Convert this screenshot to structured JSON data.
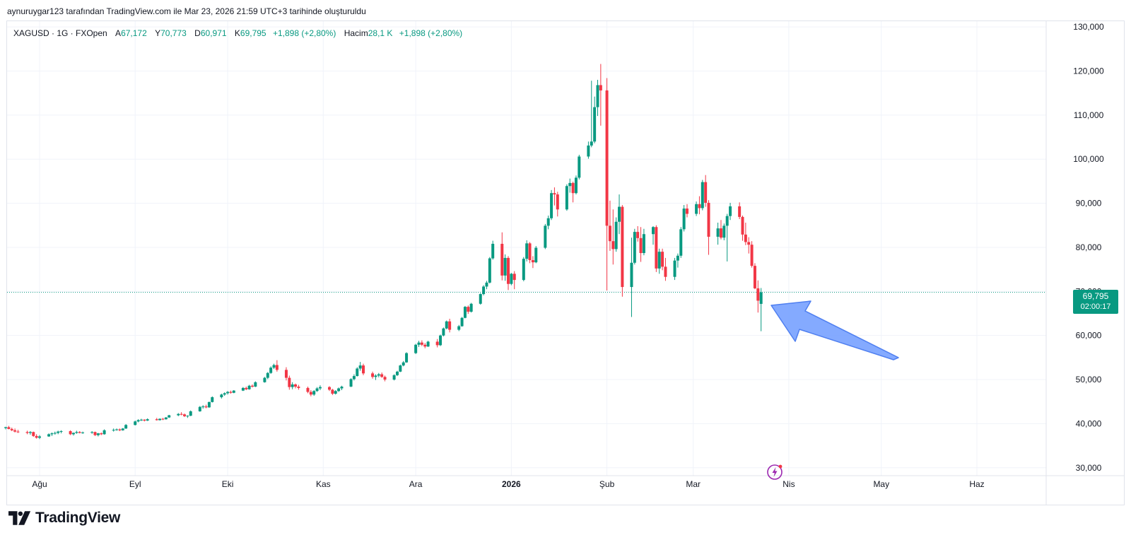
{
  "credit": "aynuruygar123 tarafından TradingView.com ile Mar 23, 2026 21:59 UTC+3 tarihinde oluşturuldu",
  "legend": {
    "symbol": "XAGUSD · 1G · FXOpen",
    "open_label": "A",
    "open": "67,172",
    "high_label": "Y",
    "high": "70,773",
    "low_label": "D",
    "low": "60,971",
    "close_label": "K",
    "close": "69,795",
    "change": "+1,898 (+2,80%)",
    "volume_label": "Hacim",
    "volume": "28,1 K",
    "volume_change": "+1,898 (+2,80%)"
  },
  "price_tag": {
    "price": "69,795",
    "countdown": "02:00:17"
  },
  "brand": {
    "name": "TradingView"
  },
  "icons": {
    "bolt": "lightning-bolt-icon",
    "logo": "tradingview-logo-icon"
  },
  "colors": {
    "up": "#089981",
    "down": "#f23645",
    "arrow": "#6f9bff",
    "grid": "#f0f3fa"
  },
  "chart_data": {
    "type": "candlestick",
    "symbol": "XAGUSD",
    "interval": "1G",
    "y_axis_ticks": [
      "30,000",
      "40,000",
      "50,000",
      "60,000",
      "70,000",
      "80,000",
      "90,000",
      "100,000",
      "110,000",
      "120,000",
      "130,000"
    ],
    "y_range": [
      28.2,
      131.3
    ],
    "x_axis_ticks": [
      {
        "label": "Ağu",
        "date": "2025-08-01"
      },
      {
        "label": "Eyl",
        "date": "2025-09-01"
      },
      {
        "label": "Eki",
        "date": "2025-10-01"
      },
      {
        "label": "Kas",
        "date": "2025-11-01"
      },
      {
        "label": "Ara",
        "date": "2025-12-01"
      },
      {
        "label": "2026",
        "date": "2026-01-01",
        "bold": true
      },
      {
        "label": "Şub",
        "date": "2026-02-01"
      },
      {
        "label": "Mar",
        "date": "2026-03-01"
      },
      {
        "label": "Nis",
        "date": "2026-04-01"
      },
      {
        "label": "May",
        "date": "2026-05-01"
      },
      {
        "label": "Haz",
        "date": "2026-06-01"
      }
    ],
    "last_price": 69.795,
    "grid": true,
    "annotation": "blue arrow pointing at last candle",
    "candles": [
      [
        "2025-07-21",
        39.0,
        39.3,
        38.7,
        39.2
      ],
      [
        "2025-07-22",
        39.2,
        39.5,
        38.7,
        38.8
      ],
      [
        "2025-07-23",
        38.8,
        39.1,
        38.3,
        38.5
      ],
      [
        "2025-07-24",
        38.5,
        38.9,
        38.0,
        38.2
      ],
      [
        "2025-07-25",
        38.2,
        38.6,
        37.9,
        38.1
      ],
      [
        "2025-07-28",
        38.1,
        38.4,
        37.6,
        37.9
      ],
      [
        "2025-07-29",
        37.9,
        38.3,
        37.5,
        38.1
      ],
      [
        "2025-07-30",
        38.1,
        38.2,
        37.0,
        37.2
      ],
      [
        "2025-07-31",
        37.2,
        37.6,
        36.6,
        36.8
      ],
      [
        "2025-08-01",
        36.8,
        37.4,
        36.5,
        37.1
      ],
      [
        "2025-08-04",
        37.1,
        37.8,
        37.0,
        37.6
      ],
      [
        "2025-08-05",
        37.6,
        38.0,
        37.2,
        37.8
      ],
      [
        "2025-08-06",
        37.8,
        38.2,
        37.5,
        37.9
      ],
      [
        "2025-08-07",
        37.9,
        38.4,
        37.6,
        38.2
      ],
      [
        "2025-08-08",
        38.2,
        38.5,
        37.8,
        38.3
      ],
      [
        "2025-08-11",
        38.3,
        38.5,
        37.4,
        37.6
      ],
      [
        "2025-08-12",
        37.6,
        38.0,
        37.3,
        37.9
      ],
      [
        "2025-08-13",
        37.9,
        38.4,
        37.7,
        38.1
      ],
      [
        "2025-08-14",
        38.1,
        38.3,
        37.8,
        37.9
      ],
      [
        "2025-08-15",
        37.9,
        38.2,
        37.7,
        38.0
      ],
      [
        "2025-08-18",
        38.0,
        38.3,
        37.7,
        38.1
      ],
      [
        "2025-08-19",
        38.1,
        38.2,
        37.2,
        37.4
      ],
      [
        "2025-08-20",
        37.4,
        37.9,
        37.1,
        37.8
      ],
      [
        "2025-08-21",
        37.8,
        38.0,
        37.4,
        37.6
      ],
      [
        "2025-08-22",
        37.6,
        38.7,
        37.5,
        38.5
      ],
      [
        "2025-08-25",
        38.5,
        38.9,
        38.2,
        38.6
      ],
      [
        "2025-08-26",
        38.6,
        38.9,
        38.4,
        38.7
      ],
      [
        "2025-08-27",
        38.7,
        38.9,
        38.3,
        38.5
      ],
      [
        "2025-08-28",
        38.5,
        39.0,
        38.4,
        38.9
      ],
      [
        "2025-08-29",
        38.9,
        39.9,
        38.8,
        39.7
      ],
      [
        "2025-09-01",
        39.7,
        40.7,
        39.6,
        40.5
      ],
      [
        "2025-09-02",
        40.5,
        41.0,
        40.3,
        40.8
      ],
      [
        "2025-09-03",
        40.8,
        41.1,
        40.6,
        40.9
      ],
      [
        "2025-09-04",
        40.9,
        41.0,
        40.5,
        40.7
      ],
      [
        "2025-09-05",
        40.7,
        41.2,
        40.6,
        41.0
      ],
      [
        "2025-09-08",
        41.0,
        41.3,
        40.7,
        40.8
      ],
      [
        "2025-09-09",
        40.8,
        41.2,
        40.7,
        41.1
      ],
      [
        "2025-09-10",
        41.1,
        41.3,
        40.8,
        41.0
      ],
      [
        "2025-09-11",
        41.0,
        41.5,
        40.9,
        41.4
      ],
      [
        "2025-09-12",
        41.4,
        42.0,
        41.3,
        41.9
      ],
      [
        "2025-09-15",
        41.9,
        42.4,
        41.7,
        42.2
      ],
      [
        "2025-09-16",
        42.2,
        42.6,
        41.9,
        42.1
      ],
      [
        "2025-09-17",
        42.1,
        42.3,
        41.5,
        41.7
      ],
      [
        "2025-09-18",
        41.7,
        41.9,
        41.3,
        41.8
      ],
      [
        "2025-09-19",
        41.8,
        43.0,
        41.7,
        42.8
      ],
      [
        "2025-09-22",
        42.8,
        44.0,
        42.7,
        43.8
      ],
      [
        "2025-09-23",
        43.8,
        44.2,
        43.4,
        43.9
      ],
      [
        "2025-09-24",
        43.9,
        44.3,
        43.5,
        43.7
      ],
      [
        "2025-09-25",
        43.7,
        45.0,
        43.6,
        44.9
      ],
      [
        "2025-09-26",
        44.9,
        46.2,
        44.8,
        46.0
      ],
      [
        "2025-09-29",
        46.0,
        46.8,
        45.7,
        46.6
      ],
      [
        "2025-09-30",
        46.6,
        47.1,
        46.3,
        46.9
      ],
      [
        "2025-10-01",
        46.9,
        47.4,
        46.6,
        47.2
      ],
      [
        "2025-10-02",
        47.2,
        47.5,
        46.8,
        47.0
      ],
      [
        "2025-10-03",
        47.0,
        47.6,
        46.9,
        47.5
      ],
      [
        "2025-10-06",
        47.5,
        48.3,
        47.4,
        48.1
      ],
      [
        "2025-10-07",
        48.1,
        48.4,
        47.6,
        47.8
      ],
      [
        "2025-10-08",
        47.8,
        48.8,
        47.7,
        48.6
      ],
      [
        "2025-10-09",
        48.6,
        48.9,
        48.2,
        48.4
      ],
      [
        "2025-10-10",
        48.4,
        49.6,
        48.3,
        49.4
      ],
      [
        "2025-10-13",
        49.4,
        50.6,
        49.3,
        50.4
      ],
      [
        "2025-10-14",
        50.4,
        51.7,
        50.1,
        51.5
      ],
      [
        "2025-10-15",
        51.5,
        53.0,
        51.3,
        52.7
      ],
      [
        "2025-10-16",
        52.7,
        53.6,
        52.4,
        53.3
      ],
      [
        "2025-10-17",
        53.3,
        54.4,
        51.8,
        52.2
      ],
      [
        "2025-10-20",
        52.2,
        52.8,
        49.8,
        50.4
      ],
      [
        "2025-10-21",
        50.4,
        50.9,
        47.7,
        48.3
      ],
      [
        "2025-10-22",
        48.3,
        49.4,
        47.8,
        48.9
      ],
      [
        "2025-10-23",
        48.9,
        49.1,
        48.0,
        48.4
      ],
      [
        "2025-10-24",
        48.4,
        48.8,
        47.7,
        48.1
      ],
      [
        "2025-10-27",
        48.1,
        48.4,
        46.9,
        47.2
      ],
      [
        "2025-10-28",
        47.2,
        47.6,
        46.2,
        46.6
      ],
      [
        "2025-10-29",
        46.6,
        47.6,
        46.3,
        47.4
      ],
      [
        "2025-10-30",
        47.4,
        48.3,
        47.2,
        48.0
      ],
      [
        "2025-10-31",
        48.0,
        48.7,
        47.6,
        48.3
      ],
      [
        "2025-11-03",
        48.3,
        48.5,
        47.4,
        47.7
      ],
      [
        "2025-11-04",
        47.7,
        47.9,
        46.5,
        46.8
      ],
      [
        "2025-11-05",
        46.8,
        47.6,
        46.6,
        47.4
      ],
      [
        "2025-11-06",
        47.4,
        48.2,
        47.2,
        48.0
      ],
      [
        "2025-11-07",
        48.0,
        48.6,
        47.6,
        48.4
      ],
      [
        "2025-11-10",
        48.4,
        50.3,
        48.3,
        50.1
      ],
      [
        "2025-11-11",
        50.1,
        51.2,
        49.8,
        50.8
      ],
      [
        "2025-11-12",
        50.8,
        52.8,
        50.7,
        52.5
      ],
      [
        "2025-11-13",
        52.5,
        54.0,
        52.0,
        53.2
      ],
      [
        "2025-11-14",
        53.2,
        53.6,
        51.0,
        51.4
      ],
      [
        "2025-11-17",
        51.4,
        51.8,
        50.2,
        50.6
      ],
      [
        "2025-11-18",
        50.6,
        51.2,
        49.9,
        50.9
      ],
      [
        "2025-11-19",
        50.9,
        51.5,
        50.5,
        51.2
      ],
      [
        "2025-11-20",
        51.2,
        51.6,
        50.4,
        50.6
      ],
      [
        "2025-11-21",
        50.6,
        50.9,
        49.6,
        50.0
      ],
      [
        "2025-11-24",
        50.0,
        51.2,
        49.8,
        51.0
      ],
      [
        "2025-11-25",
        51.0,
        52.0,
        50.8,
        51.8
      ],
      [
        "2025-11-26",
        51.8,
        53.4,
        51.7,
        53.2
      ],
      [
        "2025-11-27",
        53.2,
        54.2,
        53.0,
        53.9
      ],
      [
        "2025-11-28",
        53.9,
        56.2,
        53.8,
        56.0
      ],
      [
        "2025-12-01",
        56.0,
        58.1,
        55.8,
        57.9
      ],
      [
        "2025-12-02",
        57.9,
        58.8,
        57.4,
        58.4
      ],
      [
        "2025-12-03",
        58.4,
        58.9,
        57.6,
        57.9
      ],
      [
        "2025-12-04",
        57.9,
        58.3,
        57.1,
        57.5
      ],
      [
        "2025-12-05",
        57.5,
        58.8,
        57.4,
        58.6
      ],
      [
        "2025-12-08",
        58.6,
        59.2,
        57.3,
        57.8
      ],
      [
        "2025-12-09",
        57.8,
        60.2,
        57.6,
        60.0
      ],
      [
        "2025-12-10",
        60.0,
        61.8,
        59.8,
        61.6
      ],
      [
        "2025-12-11",
        61.6,
        63.4,
        61.4,
        63.2
      ],
      [
        "2025-12-12",
        63.2,
        63.8,
        60.7,
        61.3
      ],
      [
        "2025-12-15",
        61.3,
        62.4,
        61.0,
        62.1
      ],
      [
        "2025-12-16",
        62.1,
        64.2,
        62.0,
        64.0
      ],
      [
        "2025-12-17",
        64.0,
        66.7,
        63.9,
        66.5
      ],
      [
        "2025-12-18",
        66.5,
        66.8,
        64.9,
        65.4
      ],
      [
        "2025-12-19",
        65.4,
        67.4,
        65.2,
        67.2
      ],
      [
        "2025-12-22",
        67.2,
        69.6,
        67.0,
        69.4
      ],
      [
        "2025-12-23",
        69.4,
        71.4,
        69.1,
        71.1
      ],
      [
        "2025-12-24",
        71.1,
        72.4,
        70.5,
        72.0
      ],
      [
        "2025-12-25",
        72.0,
        77.8,
        71.8,
        77.5
      ],
      [
        "2025-12-26",
        77.5,
        81.5,
        77.2,
        80.8
      ],
      [
        "2025-12-29",
        80.8,
        83.4,
        72.5,
        73.6
      ],
      [
        "2025-12-30",
        73.6,
        78.4,
        72.4,
        77.6
      ],
      [
        "2025-12-31",
        77.6,
        78.0,
        70.3,
        71.7
      ],
      [
        "2026-01-01",
        71.7,
        74.2,
        71.4,
        74.0
      ],
      [
        "2026-01-02",
        74.0,
        74.6,
        70.5,
        72.6
      ],
      [
        "2026-01-05",
        72.6,
        77.8,
        72.3,
        77.4
      ],
      [
        "2026-01-06",
        77.4,
        81.6,
        76.8,
        80.9
      ],
      [
        "2026-01-07",
        80.9,
        81.2,
        76.4,
        77.1
      ],
      [
        "2026-01-08",
        77.1,
        78.0,
        75.3,
        76.6
      ],
      [
        "2026-01-09",
        76.6,
        80.3,
        76.4,
        79.9
      ],
      [
        "2026-01-12",
        79.9,
        85.3,
        79.6,
        84.9
      ],
      [
        "2026-01-13",
        84.9,
        87.2,
        84.1,
        86.6
      ],
      [
        "2026-01-14",
        86.6,
        93.0,
        86.2,
        92.3
      ],
      [
        "2026-01-15",
        92.3,
        93.6,
        89.5,
        92.0
      ],
      [
        "2026-01-16",
        92.0,
        92.6,
        87.0,
        88.6
      ],
      [
        "2026-01-19",
        88.6,
        94.3,
        88.3,
        93.9
      ],
      [
        "2026-01-20",
        93.9,
        95.6,
        92.4,
        94.6
      ],
      [
        "2026-01-21",
        94.6,
        94.9,
        90.2,
        92.3
      ],
      [
        "2026-01-22",
        92.3,
        96.3,
        92.0,
        95.8
      ],
      [
        "2026-01-23",
        95.8,
        101.0,
        95.4,
        100.6
      ],
      [
        "2026-01-26",
        100.6,
        104.0,
        100.1,
        103.1
      ],
      [
        "2026-01-27",
        103.1,
        117.8,
        102.7,
        104.0
      ],
      [
        "2026-01-28",
        104.0,
        114.2,
        103.6,
        111.8
      ],
      [
        "2026-01-29",
        111.8,
        118.0,
        109.8,
        116.8
      ],
      [
        "2026-01-30",
        116.8,
        121.6,
        107.6,
        115.6
      ],
      [
        "2026-02-01",
        115.6,
        118.4,
        70.2,
        84.9
      ],
      [
        "2026-02-02",
        84.9,
        90.6,
        79.2,
        81.4
      ],
      [
        "2026-02-03",
        81.4,
        88.6,
        76.1,
        79.6
      ],
      [
        "2026-02-04",
        79.6,
        86.8,
        79.0,
        85.8
      ],
      [
        "2026-02-05",
        85.8,
        92.0,
        83.0,
        89.2
      ],
      [
        "2026-02-06",
        89.2,
        89.6,
        68.8,
        71.0
      ],
      [
        "2026-02-09",
        71.0,
        82.2,
        64.2,
        76.5
      ],
      [
        "2026-02-10",
        76.5,
        84.2,
        76.1,
        83.5
      ],
      [
        "2026-02-11",
        83.5,
        84.8,
        81.3,
        82.1
      ],
      [
        "2026-02-12",
        82.1,
        84.6,
        76.7,
        78.7
      ],
      [
        "2026-02-13",
        78.7,
        84.2,
        78.2,
        83.0
      ],
      [
        "2026-02-16",
        83.0,
        84.8,
        80.6,
        84.6
      ],
      [
        "2026-02-17",
        84.6,
        85.0,
        74.4,
        75.2
      ],
      [
        "2026-02-18",
        75.2,
        79.7,
        74.0,
        79.0
      ],
      [
        "2026-02-19",
        79.0,
        79.7,
        74.8,
        75.6
      ],
      [
        "2026-02-20",
        75.6,
        77.6,
        72.4,
        73.3
      ],
      [
        "2026-02-23",
        73.3,
        77.6,
        72.6,
        77.0
      ],
      [
        "2026-02-24",
        77.0,
        78.6,
        75.4,
        78.1
      ],
      [
        "2026-02-25",
        78.1,
        84.6,
        77.6,
        84.1
      ],
      [
        "2026-02-26",
        84.1,
        89.6,
        83.6,
        88.8
      ],
      [
        "2026-02-27",
        88.8,
        89.8,
        86.8,
        87.6
      ],
      [
        "2026-03-02",
        87.6,
        90.4,
        87.1,
        89.8
      ],
      [
        "2026-03-03",
        89.8,
        91.6,
        87.5,
        88.9
      ],
      [
        "2026-03-04",
        88.9,
        95.3,
        88.4,
        94.8
      ],
      [
        "2026-03-05",
        94.8,
        96.4,
        89.2,
        90.1
      ],
      [
        "2026-03-06",
        90.1,
        90.7,
        78.3,
        82.4
      ],
      [
        "2026-03-09",
        82.4,
        85.6,
        80.6,
        84.3
      ],
      [
        "2026-03-10",
        84.3,
        86.2,
        81.8,
        82.2
      ],
      [
        "2026-03-11",
        82.2,
        85.4,
        81.6,
        84.9
      ],
      [
        "2026-03-12",
        84.9,
        87.6,
        76.8,
        87.1
      ],
      [
        "2026-03-13",
        87.1,
        90.1,
        86.2,
        89.3
      ],
      [
        "2026-03-16",
        89.3,
        90.2,
        86.4,
        86.9
      ],
      [
        "2026-03-17",
        86.9,
        87.2,
        81.5,
        82.9
      ],
      [
        "2026-03-18",
        82.9,
        85.6,
        80.5,
        81.2
      ],
      [
        "2026-03-19",
        81.2,
        82.3,
        78.6,
        80.6
      ],
      [
        "2026-03-20",
        80.6,
        81.4,
        75.4,
        75.8
      ],
      [
        "2026-03-21",
        75.8,
        76.4,
        70.5,
        70.7
      ],
      [
        "2026-03-22",
        70.7,
        72.5,
        65.2,
        67.9
      ],
      [
        "2026-03-23",
        67.172,
        70.773,
        60.971,
        69.795
      ]
    ]
  }
}
